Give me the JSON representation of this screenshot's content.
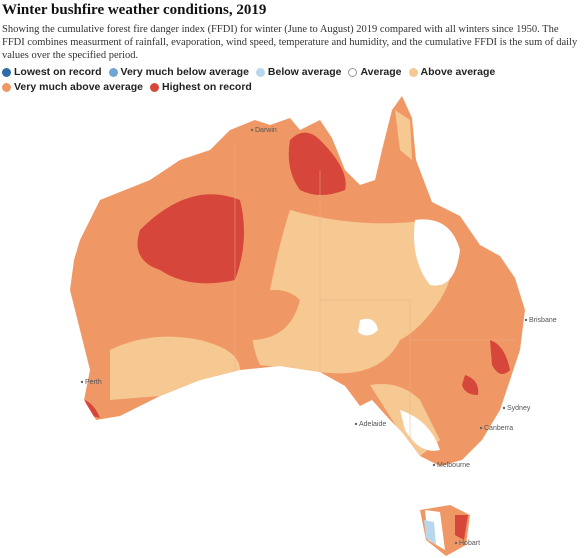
{
  "header": {
    "title": "Winter bushfire weather conditions, 2019",
    "subtitle": "Showing the cumulative forest fire danger index (FFDI) for winter (June to August) 2019 compared with all winters since 1950. The FFDI combines measurment of rainfall, evaporation, wind speed, temperature and humidity, and the cumulative FFDI is the sum of daily values over the specified period."
  },
  "legend": [
    {
      "label": "Lowest on record",
      "color": "#2f6aa8"
    },
    {
      "label": "Very much below average",
      "color": "#6fa6d6"
    },
    {
      "label": "Below average",
      "color": "#b8d7ec"
    },
    {
      "label": "Average",
      "color": "#ffffff"
    },
    {
      "label": "Above average",
      "color": "#f6c993"
    },
    {
      "label": "Very much above average",
      "color": "#ef9865"
    },
    {
      "label": "Highest on record",
      "color": "#d7463a"
    }
  ],
  "map": {
    "cities": [
      {
        "name": "Darwin"
      },
      {
        "name": "Brisbane"
      },
      {
        "name": "Perth"
      },
      {
        "name": "Sydney"
      },
      {
        "name": "Adelaide"
      },
      {
        "name": "Canberra"
      },
      {
        "name": "Melbourne"
      },
      {
        "name": "Hobart"
      }
    ]
  }
}
